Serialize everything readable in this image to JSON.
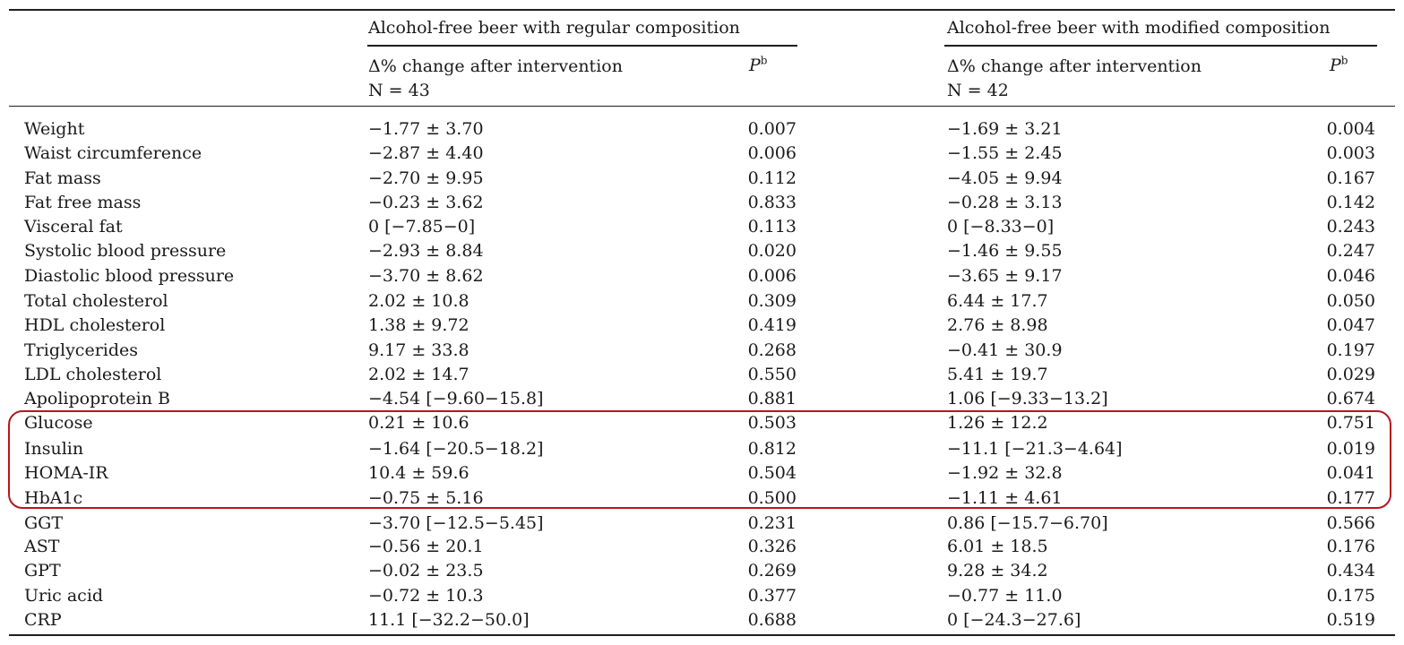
{
  "table": {
    "group_regular": {
      "title": "Alcohol-free beer with regular composition",
      "change_header": "Δ% change after intervention",
      "n_label": "N = 43",
      "p_label": "P",
      "p_superscript": "b"
    },
    "group_modified": {
      "title": "Alcohol-free beer with modified composition",
      "change_header": "Δ% change after intervention",
      "n_label": "N = 42",
      "p_label": "P",
      "p_superscript": "b"
    },
    "rows": [
      {
        "label": "Weight",
        "reg_change": "−1.77 ± 3.70",
        "reg_p": "0.007",
        "mod_change": "−1.69 ± 3.21",
        "mod_p": "0.004"
      },
      {
        "label": "Waist circumference",
        "reg_change": "−2.87 ± 4.40",
        "reg_p": "0.006",
        "mod_change": "−1.55 ± 2.45",
        "mod_p": "0.003"
      },
      {
        "label": "Fat mass",
        "reg_change": "−2.70 ± 9.95",
        "reg_p": "0.112",
        "mod_change": "−4.05 ± 9.94",
        "mod_p": "0.167"
      },
      {
        "label": "Fat free mass",
        "reg_change": "−0.23 ± 3.62",
        "reg_p": "0.833",
        "mod_change": "−0.28 ± 3.13",
        "mod_p": "0.142"
      },
      {
        "label": "Visceral fat",
        "reg_change": "0 [−7.85−0]",
        "reg_p": "0.113",
        "mod_change": "0 [−8.33−0]",
        "mod_p": "0.243"
      },
      {
        "label": "Systolic blood pressure",
        "reg_change": "−2.93 ± 8.84",
        "reg_p": "0.020",
        "mod_change": "−1.46 ± 9.55",
        "mod_p": "0.247"
      },
      {
        "label": "Diastolic blood pressure",
        "reg_change": "−3.70 ± 8.62",
        "reg_p": "0.006",
        "mod_change": "−3.65 ± 9.17",
        "mod_p": "0.046"
      },
      {
        "label": "Total cholesterol",
        "reg_change": "2.02 ± 10.8",
        "reg_p": "0.309",
        "mod_change": "6.44 ± 17.7",
        "mod_p": "0.050"
      },
      {
        "label": "HDL cholesterol",
        "reg_change": "1.38 ± 9.72",
        "reg_p": "0.419",
        "mod_change": "2.76 ± 8.98",
        "mod_p": "0.047"
      },
      {
        "label": "Triglycerides",
        "reg_change": "9.17 ± 33.8",
        "reg_p": "0.268",
        "mod_change": "−0.41 ± 30.9",
        "mod_p": "0.197"
      },
      {
        "label": "LDL cholesterol",
        "reg_change": "2.02 ± 14.7",
        "reg_p": "0.550",
        "mod_change": "5.41 ± 19.7",
        "mod_p": "0.029"
      },
      {
        "label": "Apolipoprotein B",
        "reg_change": "−4.54 [−9.60−15.8]",
        "reg_p": "0.881",
        "mod_change": "1.06 [−9.33−13.2]",
        "mod_p": "0.674"
      },
      {
        "label": "Glucose",
        "reg_change": "0.21 ± 10.6",
        "reg_p": "0.503",
        "mod_change": "1.26 ± 12.2",
        "mod_p": "0.751"
      },
      {
        "label": "Insulin",
        "reg_change": "−1.64 [−20.5−18.2]",
        "reg_p": "0.812",
        "mod_change": "−11.1 [−21.3−4.64]",
        "mod_p": "0.019"
      },
      {
        "label": "HOMA-IR",
        "reg_change": "10.4 ± 59.6",
        "reg_p": "0.504",
        "mod_change": "−1.92 ± 32.8",
        "mod_p": "0.041"
      },
      {
        "label": "HbA1c",
        "reg_change": "−0.75 ± 5.16",
        "reg_p": "0.500",
        "mod_change": "−1.11 ± 4.61",
        "mod_p": "0.177"
      },
      {
        "label": "GGT",
        "reg_change": "−3.70 [−12.5−5.45]",
        "reg_p": "0.231",
        "mod_change": "0.86 [−15.7−6.70]",
        "mod_p": "0.566"
      },
      {
        "label": "AST",
        "reg_change": "−0.56 ± 20.1",
        "reg_p": "0.326",
        "mod_change": "6.01 ± 18.5",
        "mod_p": "0.176"
      },
      {
        "label": "GPT",
        "reg_change": "−0.02 ± 23.5",
        "reg_p": "0.269",
        "mod_change": "9.28 ± 34.2",
        "mod_p": "0.434"
      },
      {
        "label": "Uric acid",
        "reg_change": "−0.72 ± 10.3",
        "reg_p": "0.377",
        "mod_change": "−0.77 ± 11.0",
        "mod_p": "0.175"
      },
      {
        "label": "CRP",
        "reg_change": "11.1 [−32.2−50.0]",
        "reg_p": "0.688",
        "mod_change": "0 [−24.3−27.6]",
        "mod_p": "0.519"
      }
    ]
  },
  "highlight": {
    "color": "#b5171f",
    "rows": [
      "Glucose",
      "Insulin",
      "HOMA-IR",
      "HbA1c"
    ]
  }
}
